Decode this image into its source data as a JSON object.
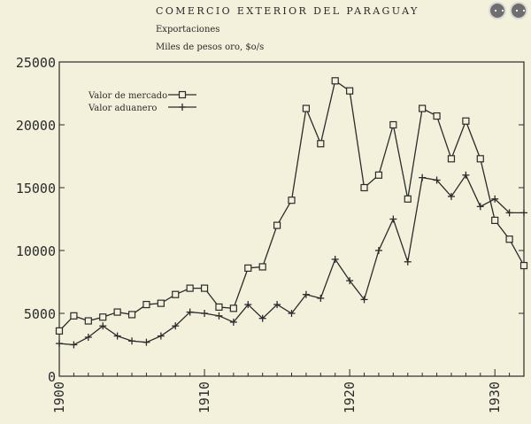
{
  "header": {
    "title": "COMERCIO EXTERIOR DEL PARAGUAY",
    "subtitle": "Exportaciones",
    "unit": "Miles de pesos oro, $o/s"
  },
  "chart_data": {
    "type": "line",
    "title": "COMERCIO EXTERIOR DEL PARAGUAY",
    "subtitle": "Exportaciones",
    "ylabel": "Miles de pesos oro, $o/s",
    "xlabel": "",
    "xlim": [
      1900,
      1932
    ],
    "ylim": [
      0,
      25000
    ],
    "x_ticks": [
      1900,
      1910,
      1920,
      1930
    ],
    "y_ticks": [
      0,
      5000,
      10000,
      15000,
      20000,
      25000
    ],
    "legend_position": "top-left",
    "grid": false,
    "series": [
      {
        "name": "Valor de mercado",
        "marker": "square",
        "x": [
          1900,
          1901,
          1902,
          1903,
          1904,
          1905,
          1906,
          1907,
          1908,
          1909,
          1910,
          1911,
          1912,
          1913,
          1914,
          1915,
          1916,
          1917,
          1918,
          1919,
          1920,
          1921,
          1922,
          1923,
          1924,
          1925,
          1926,
          1927,
          1928,
          1929,
          1930,
          1931,
          1932
        ],
        "values": [
          3600,
          4800,
          4400,
          4700,
          5100,
          4900,
          5700,
          5800,
          6500,
          7000,
          7000,
          5500,
          5400,
          8600,
          8700,
          12000,
          14000,
          21300,
          18500,
          23500,
          22700,
          15000,
          16000,
          20000,
          14100,
          21300,
          20700,
          17300,
          20300,
          17300,
          12400,
          10900,
          8800
        ]
      },
      {
        "name": "Valor aduanero",
        "marker": "plus",
        "x": [
          1900,
          1901,
          1902,
          1903,
          1904,
          1905,
          1906,
          1907,
          1908,
          1909,
          1910,
          1911,
          1912,
          1913,
          1914,
          1915,
          1916,
          1917,
          1918,
          1919,
          1920,
          1921,
          1922,
          1923,
          1924,
          1925,
          1926,
          1927,
          1928,
          1929,
          1930,
          1931,
          1932
        ],
        "values": [
          2600,
          2500,
          3100,
          4000,
          3200,
          2800,
          2700,
          3200,
          4000,
          5100,
          5000,
          4800,
          4300,
          5700,
          4600,
          5700,
          5000,
          6500,
          6200,
          9300,
          7600,
          6100,
          10000,
          12500,
          9100,
          15800,
          15600,
          14300,
          16000,
          13500,
          14100,
          13000,
          13000
        ]
      }
    ]
  }
}
